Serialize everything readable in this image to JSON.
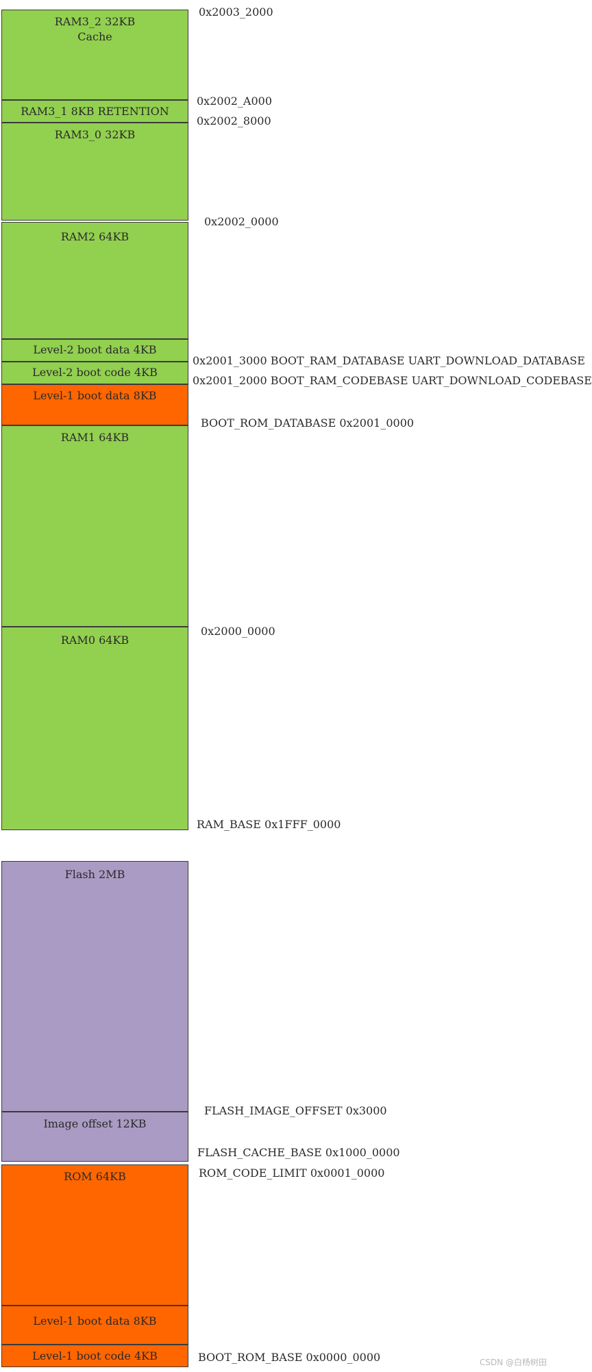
{
  "colors": {
    "ram": "#92d050",
    "boot": "#ff6600",
    "flash": "#a99bc3"
  },
  "blocks": {
    "ram3_2_name": "RAM3_2 32KB",
    "ram3_2_sub": "Cache",
    "ram3_1": "RAM3_1 8KB RETENTION",
    "ram3_0": "RAM3_0 32KB",
    "ram2": "RAM2 64KB",
    "l2_boot_data": "Level-2 boot data 4KB",
    "l2_boot_code": "Level-2 boot code 4KB",
    "l1_boot_data_ram": "Level-1 boot data 8KB",
    "ram1": "RAM1 64KB",
    "ram0": "RAM0 64KB",
    "flash": "Flash 2MB",
    "image_offset": "Image offset 12KB",
    "rom": "ROM 64KB",
    "l1_boot_data_rom": "Level-1 boot data 8KB",
    "l1_boot_code_rom": "Level-1 boot code 4KB"
  },
  "addresses": {
    "a_2003_2000": "0x2003_2000",
    "a_2002_a000": "0x2002_A000",
    "a_2002_8000": "0x2002_8000",
    "a_2002_0000": "0x2002_0000",
    "a_2001_3000": "0x2001_3000 BOOT_RAM_DATABASE UART_DOWNLOAD_DATABASE",
    "a_2001_2000": "0x2001_2000 BOOT_RAM_CODEBASE UART_DOWNLOAD_CODEBASE",
    "a_boot_rom_database": "BOOT_ROM_DATABASE 0x2001_0000",
    "a_2000_0000": "0x2000_0000",
    "a_ram_base": "RAM_BASE 0x1FFF_0000",
    "a_flash_image_offset": "FLASH_IMAGE_OFFSET 0x3000",
    "a_flash_cache_base": "FLASH_CACHE_BASE 0x1000_0000",
    "a_rom_code_limit": "ROM_CODE_LIMIT 0x0001_0000",
    "a_boot_rom_base": "BOOT_ROM_BASE 0x0000_0000"
  },
  "watermark": "CSDN @白杨树田"
}
